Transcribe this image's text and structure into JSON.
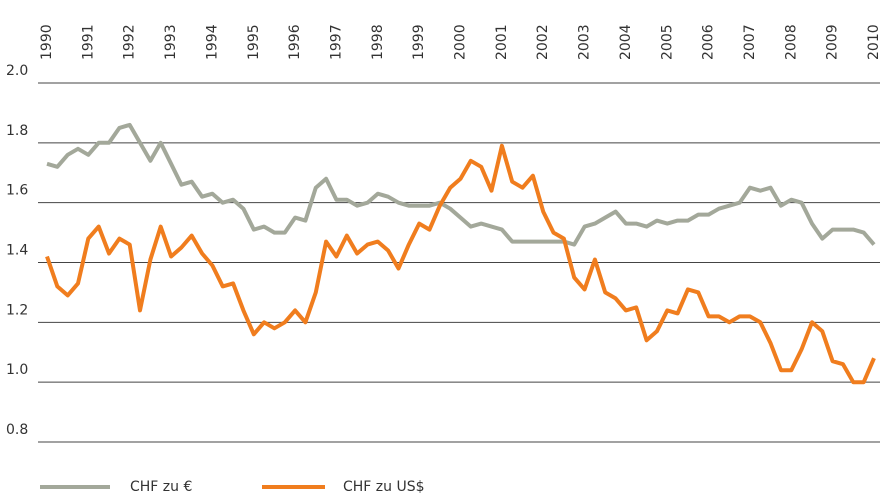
{
  "chart_data": {
    "type": "line",
    "x": [
      1990,
      1990.25,
      1990.5,
      1990.75,
      1991,
      1991.25,
      1991.5,
      1991.75,
      1992,
      1992.25,
      1992.5,
      1992.75,
      1993,
      1993.25,
      1993.5,
      1993.75,
      1994,
      1994.25,
      1994.5,
      1994.75,
      1995,
      1995.25,
      1995.5,
      1995.75,
      1996,
      1996.25,
      1996.5,
      1996.75,
      1997,
      1997.25,
      1997.5,
      1997.75,
      1998,
      1998.25,
      1998.5,
      1998.75,
      1999,
      1999.25,
      1999.5,
      1999.75,
      2000,
      2000.25,
      2000.5,
      2000.75,
      2001,
      2001.25,
      2001.5,
      2001.75,
      2002,
      2002.25,
      2002.5,
      2002.75,
      2003,
      2003.25,
      2003.5,
      2003.75,
      2004,
      2004.25,
      2004.5,
      2004.75,
      2005,
      2005.25,
      2005.5,
      2005.75,
      2006,
      2006.25,
      2006.5,
      2006.75,
      2007,
      2007.25,
      2007.5,
      2007.75,
      2008,
      2008.25,
      2008.5,
      2008.75,
      2009,
      2009.25,
      2009.5,
      2009.75,
      2010
    ],
    "series": [
      {
        "name": "CHF zu €",
        "color": "#a3a89a",
        "values": [
          1.73,
          1.72,
          1.76,
          1.78,
          1.76,
          1.8,
          1.8,
          1.85,
          1.86,
          1.8,
          1.74,
          1.8,
          1.73,
          1.66,
          1.67,
          1.62,
          1.63,
          1.6,
          1.61,
          1.58,
          1.51,
          1.52,
          1.5,
          1.5,
          1.55,
          1.54,
          1.65,
          1.68,
          1.61,
          1.61,
          1.59,
          1.6,
          1.63,
          1.62,
          1.6,
          1.59,
          1.59,
          1.59,
          1.6,
          1.58,
          1.55,
          1.52,
          1.53,
          1.52,
          1.51,
          1.47,
          1.47,
          1.47,
          1.47,
          1.47,
          1.47,
          1.46,
          1.52,
          1.53,
          1.55,
          1.57,
          1.53,
          1.53,
          1.52,
          1.54,
          1.53,
          1.54,
          1.54,
          1.56,
          1.56,
          1.58,
          1.59,
          1.6,
          1.65,
          1.64,
          1.65,
          1.59,
          1.61,
          1.6,
          1.53,
          1.48,
          1.51,
          1.51,
          1.51,
          1.5,
          1.46
        ]
      },
      {
        "name": "CHF zu US$",
        "color": "#f07d1e",
        "values": [
          1.42,
          1.32,
          1.29,
          1.33,
          1.48,
          1.52,
          1.43,
          1.48,
          1.46,
          1.24,
          1.41,
          1.52,
          1.42,
          1.45,
          1.49,
          1.43,
          1.39,
          1.32,
          1.33,
          1.24,
          1.16,
          1.2,
          1.18,
          1.2,
          1.24,
          1.2,
          1.3,
          1.47,
          1.42,
          1.49,
          1.43,
          1.46,
          1.47,
          1.44,
          1.38,
          1.46,
          1.53,
          1.51,
          1.59,
          1.65,
          1.68,
          1.74,
          1.72,
          1.64,
          1.79,
          1.67,
          1.65,
          1.69,
          1.57,
          1.5,
          1.48,
          1.35,
          1.31,
          1.41,
          1.3,
          1.28,
          1.24,
          1.25,
          1.14,
          1.17,
          1.24,
          1.23,
          1.31,
          1.3,
          1.22,
          1.22,
          1.2,
          1.22,
          1.22,
          1.2,
          1.13,
          1.04,
          1.04,
          1.11,
          1.2,
          1.17,
          1.07,
          1.06,
          1.0,
          1.0,
          1.08
        ]
      }
    ],
    "xlim": [
      1990,
      2010
    ],
    "xticks": [
      1990,
      1991,
      1992,
      1993,
      1994,
      1995,
      1996,
      1997,
      1998,
      1999,
      2000,
      2001,
      2002,
      2003,
      2004,
      2005,
      2006,
      2007,
      2008,
      2009,
      2010
    ],
    "ylim": [
      0.8,
      2.0
    ],
    "yticks": [
      0.8,
      {
        "value": 1,
        "label": "1.0"
      },
      1.2,
      1.4,
      1.6,
      1.8,
      {
        "value": 2,
        "label": "2.0"
      }
    ],
    "grid": true
  }
}
